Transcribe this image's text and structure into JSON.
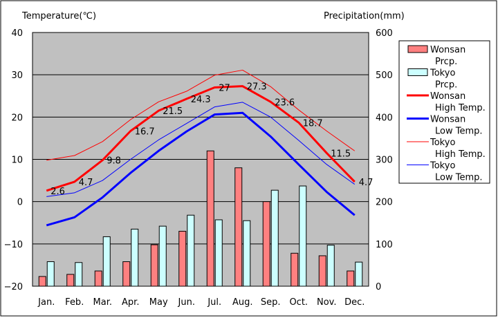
{
  "chart_data": {
    "type": "bar+line",
    "left_axis_title": "Temperature(℃)",
    "right_axis_title": "Precipitation(mm)",
    "categories": [
      "Jan.",
      "Feb.",
      "Mar.",
      "Apr.",
      "May",
      "Jun.",
      "Jul.",
      "Aug.",
      "Sep.",
      "Oct.",
      "Nov.",
      "Dec."
    ],
    "left_ticks": [
      "40",
      "30",
      "20",
      "10",
      "0",
      "−10",
      "−20"
    ],
    "right_ticks": [
      "600",
      "500",
      "400",
      "300",
      "200",
      "100",
      "0"
    ],
    "temp_range": [
      -20,
      40
    ],
    "precip_range": [
      0,
      600
    ],
    "bars": [
      {
        "name": "Wonsan Prcp.",
        "legend_line1": "Wonsan",
        "legend_line2": "Prcp.",
        "color": "#ff8080",
        "values": [
          23,
          28,
          36,
          58,
          98,
          130,
          320,
          280,
          200,
          78,
          72,
          36
        ]
      },
      {
        "name": "Tokyo Prcp.",
        "legend_line1": "Tokyo",
        "legend_line2": "Prcp.",
        "color": "#ccffff",
        "values": [
          58,
          56,
          117,
          135,
          142,
          168,
          157,
          155,
          227,
          237,
          97,
          57
        ]
      }
    ],
    "lines": [
      {
        "name": "Wonsan High Temp.",
        "legend_line1": "Wonsan",
        "legend_line2": "High Temp.",
        "color": "#ff0000",
        "width": 3,
        "values": [
          2.6,
          4.7,
          9.8,
          16.7,
          21.5,
          24.3,
          27,
          27.3,
          23.6,
          18.7,
          11.5,
          4.7
        ],
        "labels": [
          "2.6",
          "4.7",
          "9.8",
          "16.7",
          "21.5",
          "24.3",
          "27",
          "27.3",
          "23.6",
          "18.7",
          "11.5",
          "4.7"
        ]
      },
      {
        "name": "Wonsan Low Temp.",
        "legend_line1": "Wonsan",
        "legend_line2": "Low Temp.",
        "color": "#0000ff",
        "width": 3,
        "values": [
          -5.6,
          -3.7,
          1.0,
          6.8,
          12.0,
          16.6,
          20.6,
          21.0,
          15.4,
          8.8,
          2.3,
          -3.2
        ]
      },
      {
        "name": "Tokyo High Temp.",
        "legend_line1": "Tokyo",
        "legend_line2": "High Temp.",
        "color": "#ff0000",
        "width": 1,
        "values": [
          9.8,
          10.9,
          14.2,
          19.4,
          23.6,
          26.1,
          29.9,
          31.1,
          27.2,
          21.7,
          16.7,
          12.0
        ]
      },
      {
        "name": "Tokyo Low Temp.",
        "legend_line1": "Tokyo",
        "legend_line2": "Low Temp.",
        "color": "#0000ff",
        "width": 1,
        "values": [
          1.2,
          2.1,
          5.0,
          10.0,
          14.6,
          18.5,
          22.4,
          23.5,
          20.0,
          14.5,
          8.8,
          4.1
        ]
      }
    ]
  }
}
